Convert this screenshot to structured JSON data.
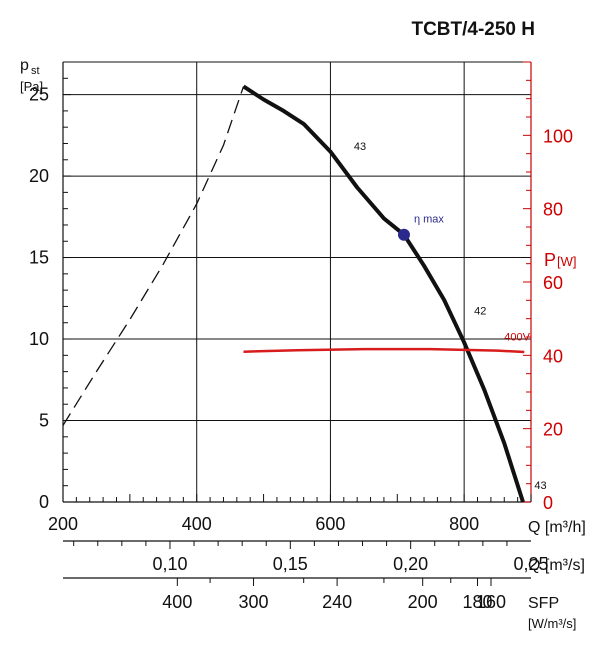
{
  "chart_data": {
    "type": "line",
    "title": "TCBT/4-250 H",
    "y_left_label": "p",
    "y_left_label_sub": "st",
    "y_left_unit": "[Pa]",
    "y_right_label": "P",
    "y_right_unit": "[W]",
    "x_labels": {
      "q_m3h": "Q [m³/h]",
      "q_m3s": "Q [m³/s]",
      "sfp": "SFP",
      "sfp_unit": "[W/m³/s]"
    },
    "xlim": [
      200,
      900
    ],
    "ylim_left": [
      0,
      27
    ],
    "ylim_right": [
      0,
      120
    ],
    "x_ticks": [
      200,
      400,
      600,
      800
    ],
    "y_left_ticks": [
      0,
      5,
      10,
      15,
      20,
      25
    ],
    "y_right_ticks": [
      0,
      20,
      40,
      60,
      80,
      100
    ],
    "q_m3s_ticks": [
      {
        "value": 0.1,
        "label": "0,10"
      },
      {
        "value": 0.15,
        "label": "0,15"
      },
      {
        "value": 0.2,
        "label": "0,20"
      },
      {
        "value": 0.25,
        "label": "0,25"
      }
    ],
    "sfp_ticks": [
      {
        "q": 371,
        "label": "400"
      },
      {
        "q": 485,
        "label": "300"
      },
      {
        "q": 610,
        "label": "240"
      },
      {
        "q": 738,
        "label": "200"
      },
      {
        "q": 820,
        "label": "180"
      },
      {
        "q": 914,
        "label": "160"
      }
    ],
    "series": [
      {
        "kind": "pressure",
        "style": "solid",
        "color": "#111111",
        "x": [
          470,
          500,
          530,
          560,
          600,
          640,
          680,
          710,
          740,
          770,
          800,
          830,
          860,
          888
        ],
        "y": [
          25.5,
          24.7,
          24.0,
          23.2,
          21.5,
          19.3,
          17.4,
          16.4,
          14.5,
          12.4,
          9.8,
          6.9,
          3.6,
          0.0
        ]
      },
      {
        "kind": "stall",
        "style": "dashed",
        "color": "#111111",
        "x": [
          200,
          250,
          300,
          350,
          400,
          440,
          470
        ],
        "y": [
          4.7,
          8.0,
          11.2,
          14.6,
          18.3,
          21.9,
          25.5
        ]
      },
      {
        "name": "400V",
        "kind": "power",
        "axis": "right",
        "color": "#d81b1b",
        "x": [
          470,
          550,
          650,
          750,
          850,
          890
        ],
        "y": [
          41.0,
          41.4,
          41.7,
          41.7,
          41.3,
          40.9
        ]
      }
    ],
    "annotations": [
      {
        "text": "43",
        "q": 635,
        "p": 21.6
      },
      {
        "text": "42",
        "q": 815,
        "p": 11.5
      },
      {
        "text": "43",
        "q": 905,
        "p": 0.8
      }
    ],
    "efficiency_point": {
      "label": "η max",
      "q": 710,
      "p": 16.4,
      "color": "#2a2a8c"
    },
    "power_label": "400V",
    "grid": true
  }
}
